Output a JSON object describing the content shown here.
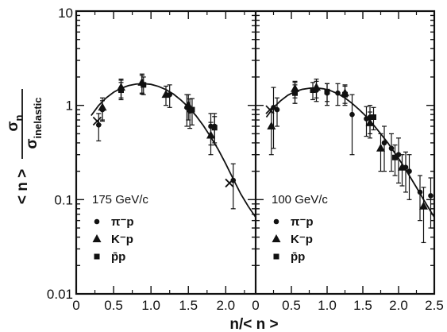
{
  "chart_data": {
    "type": "scatter",
    "ylabel": {
      "numer": "σ",
      "numer_sub": "n",
      "denom": "σ",
      "denom_sub": "inelastic",
      "prefix": "< n >"
    },
    "xlabel": "n/< n >",
    "y_scale": "log",
    "ylim": [
      0.01,
      10
    ],
    "y_ticks": [
      0.01,
      0.1,
      1,
      10
    ],
    "y_tick_labels": [
      "0.01",
      "0.1",
      "1",
      "10"
    ],
    "grid": false,
    "colors": {
      "ink": "#111111",
      "background": "#ffffff"
    },
    "panels": [
      {
        "label": "175 GeV/c",
        "xlim": [
          0,
          2.4
        ],
        "x_ticks": [
          0,
          0.5,
          1.0,
          1.5,
          2.0
        ],
        "x_tick_labels": [
          "0",
          "0.5",
          "1.0",
          "1.5",
          "2.0"
        ],
        "legend": [
          {
            "marker": "circle",
            "text": "π⁻p"
          },
          {
            "marker": "triangle",
            "text": "K⁻p"
          },
          {
            "marker": "square",
            "text": "p̄p"
          }
        ],
        "curve": {
          "x": [
            0.2,
            0.3,
            0.4,
            0.5,
            0.6,
            0.7,
            0.8,
            0.9,
            1.0,
            1.1,
            1.2,
            1.3,
            1.4,
            1.5,
            1.6,
            1.7,
            1.8,
            1.9,
            2.0,
            2.1,
            2.2,
            2.3,
            2.4
          ],
          "y": [
            0.78,
            1.0,
            1.2,
            1.38,
            1.52,
            1.62,
            1.68,
            1.7,
            1.67,
            1.59,
            1.47,
            1.32,
            1.14,
            0.96,
            0.78,
            0.61,
            0.46,
            0.34,
            0.24,
            0.165,
            0.115,
            0.085,
            0.065
          ]
        },
        "series": [
          {
            "marker": "circle",
            "x": [
              0.3,
              0.35,
              0.6,
              0.88,
              1.25,
              1.48,
              1.52,
              1.8,
              1.85,
              2.1
            ],
            "y": [
              0.62,
              0.9,
              1.5,
              1.7,
              1.3,
              0.95,
              0.87,
              0.6,
              0.6,
              0.16
            ],
            "err": [
              0.2,
              0.22,
              0.35,
              0.38,
              0.35,
              0.35,
              0.3,
              0.22,
              0.22,
              0.08
            ]
          },
          {
            "marker": "triangle",
            "x": [
              0.35,
              0.6,
              0.88,
              1.2,
              1.5,
              1.8
            ],
            "y": [
              0.95,
              1.55,
              1.75,
              1.3,
              1.0,
              0.48
            ],
            "err": [
              0.25,
              0.35,
              0.4,
              0.3,
              0.3,
              0.18
            ]
          },
          {
            "marker": "square",
            "x": [
              0.6,
              0.9,
              1.55,
              1.85
            ],
            "y": [
              1.45,
              1.65,
              0.9,
              0.58
            ],
            "err": [
              0.3,
              0.35,
              0.28,
              0.18
            ]
          },
          {
            "marker": "cross",
            "x": [
              0.28,
              2.05
            ],
            "y": [
              0.68,
              0.15
            ],
            "err": [
              0.0,
              0.0
            ]
          }
        ]
      },
      {
        "label": "100 GeV/c",
        "xlim": [
          0,
          2.5
        ],
        "x_ticks": [
          0,
          0.5,
          1.0,
          1.5,
          2.0,
          2.5
        ],
        "x_tick_labels": [
          "0",
          "0.5",
          "1.0",
          "1.5",
          "2.0",
          "2.5"
        ],
        "legend": [
          {
            "marker": "circle",
            "text": "π⁻p"
          },
          {
            "marker": "triangle",
            "text": "K⁻p"
          },
          {
            "marker": "square",
            "text": "p̄p"
          }
        ],
        "curve": {
          "x": [
            0.15,
            0.25,
            0.35,
            0.45,
            0.55,
            0.65,
            0.75,
            0.85,
            0.95,
            1.05,
            1.15,
            1.25,
            1.35,
            1.45,
            1.55,
            1.65,
            1.75,
            1.85,
            1.95,
            2.05,
            2.15,
            2.25,
            2.35,
            2.45,
            2.5
          ],
          "y": [
            0.75,
            0.95,
            1.12,
            1.28,
            1.4,
            1.48,
            1.52,
            1.53,
            1.5,
            1.43,
            1.33,
            1.2,
            1.05,
            0.9,
            0.76,
            0.62,
            0.5,
            0.4,
            0.31,
            0.24,
            0.18,
            0.135,
            0.1,
            0.075,
            0.065
          ]
        },
        "series": [
          {
            "marker": "circle",
            "x": [
              0.25,
              0.3,
              0.55,
              0.85,
              1.0,
              1.15,
              1.35,
              1.55,
              1.6,
              1.8,
              1.9,
              2.0,
              2.1,
              2.15,
              2.3,
              2.45
            ],
            "y": [
              0.95,
              0.9,
              1.4,
              1.45,
              1.35,
              1.35,
              0.8,
              0.72,
              0.75,
              0.4,
              0.35,
              0.3,
              0.22,
              0.2,
              0.12,
              0.11
            ],
            "err": [
              0.6,
              0.3,
              0.35,
              0.35,
              0.35,
              0.35,
              0.5,
              0.25,
              0.25,
              0.2,
              0.15,
              0.15,
              0.1,
              0.1,
              0.06,
              0.06
            ]
          },
          {
            "marker": "triangle",
            "x": [
              0.22,
              0.55,
              0.85,
              1.25,
              1.6,
              1.75,
              2.05,
              2.35
            ],
            "y": [
              0.6,
              1.5,
              1.55,
              1.35,
              0.65,
              0.35,
              0.22,
              0.085
            ],
            "err": [
              0.3,
              0.3,
              0.35,
              0.3,
              0.2,
              0.15,
              0.08,
              0.05
            ]
          },
          {
            "marker": "square",
            "x": [
              0.55,
              0.8,
              1.0,
              1.25,
              1.65,
              1.95
            ],
            "y": [
              1.35,
              1.45,
              1.4,
              1.3,
              0.75,
              0.28
            ],
            "err": [
              0.3,
              0.3,
              0.3,
              0.3,
              0.2,
              0.1
            ]
          },
          {
            "marker": "cross",
            "x": [
              0.2
            ],
            "y": [
              0.9
            ],
            "err": [
              0.0
            ]
          }
        ]
      }
    ]
  }
}
